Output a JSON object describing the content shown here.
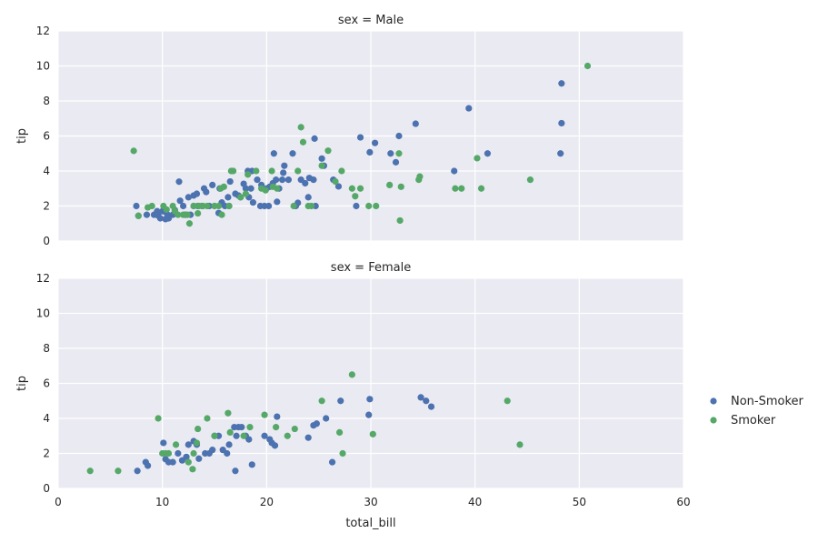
{
  "chart_data": [
    {
      "type": "scatter",
      "title": "sex = Male",
      "xlabel": "",
      "ylabel": "tip",
      "xlim": [
        0,
        60
      ],
      "ylim": [
        0,
        12
      ],
      "xticks": [
        0,
        10,
        20,
        30,
        40,
        50,
        60
      ],
      "yticks": [
        0,
        2,
        4,
        6,
        8,
        10,
        12
      ],
      "grid": true,
      "series": [
        {
          "name": "Non-Smoker",
          "color": "#4C72B0",
          "points": [
            [
              7.5,
              2
            ],
            [
              7.7,
              1.44
            ],
            [
              8.5,
              1.5
            ],
            [
              9.2,
              1.5
            ],
            [
              9.5,
              1.7
            ],
            [
              9.6,
              1.45
            ],
            [
              9.8,
              1.3
            ],
            [
              10.0,
              1.7
            ],
            [
              10.3,
              1.25
            ],
            [
              10.3,
              1.66
            ],
            [
              10.5,
              1.5
            ],
            [
              10.6,
              1.3
            ],
            [
              11.0,
              1.5
            ],
            [
              11.2,
              1.76
            ],
            [
              11.6,
              3.39
            ],
            [
              11.7,
              2.3
            ],
            [
              12.0,
              2.0
            ],
            [
              12.2,
              1.5
            ],
            [
              12.5,
              2.5
            ],
            [
              12.7,
              1.5
            ],
            [
              13.0,
              2.0
            ],
            [
              13.0,
              2.6
            ],
            [
              13.3,
              2.7
            ],
            [
              13.4,
              2.0
            ],
            [
              13.8,
              2.0
            ],
            [
              14.0,
              3.0
            ],
            [
              14.2,
              2.8
            ],
            [
              14.5,
              2.0
            ],
            [
              14.8,
              3.2
            ],
            [
              15.0,
              2.0
            ],
            [
              15.4,
              1.6
            ],
            [
              15.5,
              3.0
            ],
            [
              15.7,
              2.2
            ],
            [
              16.0,
              2.0
            ],
            [
              16.3,
              2.5
            ],
            [
              16.4,
              2.0
            ],
            [
              16.5,
              3.4
            ],
            [
              17.0,
              2.7
            ],
            [
              17.3,
              2.6
            ],
            [
              17.5,
              2.5
            ],
            [
              17.8,
              3.27
            ],
            [
              18.0,
              3.0
            ],
            [
              18.2,
              4.0
            ],
            [
              18.3,
              2.5
            ],
            [
              18.5,
              3.0
            ],
            [
              18.6,
              4.0
            ],
            [
              18.7,
              2.2
            ],
            [
              19.1,
              3.5
            ],
            [
              19.4,
              2.0
            ],
            [
              19.5,
              3.2
            ],
            [
              19.8,
              2.0
            ],
            [
              20.0,
              3.0
            ],
            [
              20.2,
              2.0
            ],
            [
              20.3,
              3.1
            ],
            [
              20.6,
              3.3
            ],
            [
              20.7,
              5.0
            ],
            [
              20.9,
              3.5
            ],
            [
              21.0,
              2.24
            ],
            [
              21.2,
              3.0
            ],
            [
              21.5,
              3.5
            ],
            [
              21.6,
              3.9
            ],
            [
              21.7,
              4.3
            ],
            [
              22.1,
              3.5
            ],
            [
              22.5,
              5.0
            ],
            [
              22.8,
              2.0
            ],
            [
              23.0,
              2.18
            ],
            [
              23.3,
              3.5
            ],
            [
              23.7,
              3.3
            ],
            [
              24.0,
              2.5
            ],
            [
              24.1,
              3.6
            ],
            [
              24.5,
              3.5
            ],
            [
              24.6,
              5.85
            ],
            [
              24.7,
              2.0
            ],
            [
              25.3,
              4.71
            ],
            [
              25.5,
              4.3
            ],
            [
              26.4,
              3.5
            ],
            [
              26.9,
              3.12
            ],
            [
              28.6,
              2.0
            ],
            [
              29.0,
              5.92
            ],
            [
              29.9,
              5.07
            ],
            [
              30.4,
              5.6
            ],
            [
              31.9,
              5.0
            ],
            [
              32.4,
              4.5
            ],
            [
              32.7,
              6.0
            ],
            [
              34.3,
              6.7
            ],
            [
              38.0,
              4.0
            ],
            [
              39.4,
              7.58
            ],
            [
              41.2,
              5.0
            ],
            [
              48.2,
              5.0
            ],
            [
              48.3,
              6.73
            ],
            [
              48.3,
              9.0
            ]
          ]
        },
        {
          "name": "Smoker",
          "color": "#55A868",
          "points": [
            [
              7.25,
              5.15
            ],
            [
              7.7,
              1.44
            ],
            [
              8.6,
              1.92
            ],
            [
              9.0,
              2.0
            ],
            [
              10.1,
              2.0
            ],
            [
              10.4,
              1.8
            ],
            [
              11.0,
              2.0
            ],
            [
              11.2,
              1.7
            ],
            [
              11.5,
              1.5
            ],
            [
              12.0,
              1.5
            ],
            [
              12.4,
              1.5
            ],
            [
              12.6,
              1.0
            ],
            [
              13.0,
              2.0
            ],
            [
              13.4,
              1.58
            ],
            [
              13.5,
              2.0
            ],
            [
              13.9,
              2.0
            ],
            [
              14.3,
              2.0
            ],
            [
              15.0,
              2.0
            ],
            [
              15.4,
              2.0
            ],
            [
              15.6,
              3.0
            ],
            [
              15.7,
              1.5
            ],
            [
              15.9,
              3.1
            ],
            [
              16.4,
              2.0
            ],
            [
              16.6,
              4.0
            ],
            [
              16.8,
              4.0
            ],
            [
              17.5,
              2.5
            ],
            [
              18.0,
              2.7
            ],
            [
              18.2,
              3.8
            ],
            [
              19.0,
              4.0
            ],
            [
              19.5,
              3.0
            ],
            [
              19.9,
              2.9
            ],
            [
              20.5,
              4.0
            ],
            [
              20.6,
              3.1
            ],
            [
              21.0,
              3.0
            ],
            [
              22.6,
              2.0
            ],
            [
              23.0,
              4.0
            ],
            [
              23.3,
              6.5
            ],
            [
              23.5,
              5.65
            ],
            [
              24.0,
              2.0
            ],
            [
              24.3,
              2.0
            ],
            [
              25.3,
              4.3
            ],
            [
              25.9,
              5.16
            ],
            [
              26.6,
              3.4
            ],
            [
              27.2,
              4.0
            ],
            [
              28.2,
              3.0
            ],
            [
              28.5,
              2.56
            ],
            [
              29.0,
              3.0
            ],
            [
              29.8,
              2.0
            ],
            [
              30.5,
              2.0
            ],
            [
              31.8,
              3.2
            ],
            [
              32.7,
              5.0
            ],
            [
              32.8,
              1.17
            ],
            [
              32.9,
              3.1
            ],
            [
              34.6,
              3.5
            ],
            [
              34.7,
              3.68
            ],
            [
              38.1,
              3.0
            ],
            [
              38.7,
              3.0
            ],
            [
              40.2,
              4.73
            ],
            [
              40.6,
              3.0
            ],
            [
              45.3,
              3.5
            ],
            [
              50.8,
              10.0
            ]
          ]
        }
      ]
    },
    {
      "type": "scatter",
      "title": "sex = Female",
      "xlabel": "total_bill",
      "ylabel": "tip",
      "xlim": [
        0,
        60
      ],
      "ylim": [
        0,
        12
      ],
      "xticks": [
        0,
        10,
        20,
        30,
        40,
        50,
        60
      ],
      "yticks": [
        0,
        2,
        4,
        6,
        8,
        10,
        12
      ],
      "grid": true,
      "series": [
        {
          "name": "Non-Smoker",
          "color": "#4C72B0",
          "points": [
            [
              7.6,
              1.0
            ],
            [
              8.4,
              1.5
            ],
            [
              8.6,
              1.3
            ],
            [
              10.1,
              2.6
            ],
            [
              10.3,
              1.67
            ],
            [
              10.6,
              1.5
            ],
            [
              11.0,
              1.5
            ],
            [
              11.5,
              2.0
            ],
            [
              11.9,
              1.6
            ],
            [
              12.3,
              1.8
            ],
            [
              12.5,
              2.5
            ],
            [
              13.0,
              2.7
            ],
            [
              13.3,
              2.5
            ],
            [
              13.5,
              1.7
            ],
            [
              14.1,
              2.0
            ],
            [
              14.5,
              2.0
            ],
            [
              14.8,
              2.2
            ],
            [
              15.0,
              3.0
            ],
            [
              15.4,
              3.0
            ],
            [
              15.8,
              2.2
            ],
            [
              16.2,
              2.0
            ],
            [
              16.4,
              2.5
            ],
            [
              16.9,
              3.5
            ],
            [
              17.0,
              1.0
            ],
            [
              17.1,
              3.0
            ],
            [
              17.3,
              3.5
            ],
            [
              17.6,
              3.5
            ],
            [
              18.0,
              3.0
            ],
            [
              18.3,
              2.8
            ],
            [
              18.6,
              1.36
            ],
            [
              19.8,
              3.0
            ],
            [
              20.3,
              2.8
            ],
            [
              20.5,
              2.6
            ],
            [
              20.8,
              2.45
            ],
            [
              21.0,
              4.1
            ],
            [
              24.0,
              2.9
            ],
            [
              24.5,
              3.6
            ],
            [
              24.8,
              3.7
            ],
            [
              25.7,
              4.0
            ],
            [
              26.3,
              1.5
            ],
            [
              27.1,
              5.0
            ],
            [
              29.8,
              4.2
            ],
            [
              29.9,
              5.1
            ],
            [
              34.8,
              5.2
            ],
            [
              35.3,
              5.0
            ],
            [
              35.8,
              4.67
            ]
          ]
        },
        {
          "name": "Smoker",
          "color": "#55A868",
          "points": [
            [
              3.07,
              1.0
            ],
            [
              5.75,
              1.0
            ],
            [
              9.6,
              4.0
            ],
            [
              10.0,
              2.0
            ],
            [
              10.3,
              2.0
            ],
            [
              10.6,
              2.0
            ],
            [
              11.3,
              2.5
            ],
            [
              12.5,
              1.5
            ],
            [
              12.9,
              1.1
            ],
            [
              13.0,
              2.0
            ],
            [
              13.3,
              2.6
            ],
            [
              13.4,
              3.4
            ],
            [
              14.3,
              4.0
            ],
            [
              15.0,
              3.0
            ],
            [
              16.3,
              4.3
            ],
            [
              16.5,
              3.2
            ],
            [
              17.8,
              3.0
            ],
            [
              18.4,
              3.5
            ],
            [
              19.8,
              4.2
            ],
            [
              20.9,
              3.5
            ],
            [
              22.0,
              3.0
            ],
            [
              22.7,
              3.4
            ],
            [
              25.3,
              5.0
            ],
            [
              27.0,
              3.2
            ],
            [
              27.3,
              2.0
            ],
            [
              28.2,
              6.5
            ],
            [
              30.2,
              3.1
            ],
            [
              43.1,
              5.0
            ],
            [
              44.3,
              2.5
            ]
          ]
        }
      ]
    }
  ],
  "legend": {
    "placement": "right",
    "items": [
      {
        "label": "Non-Smoker",
        "color": "#4C72B0"
      },
      {
        "label": "Smoker",
        "color": "#55A868"
      }
    ]
  }
}
